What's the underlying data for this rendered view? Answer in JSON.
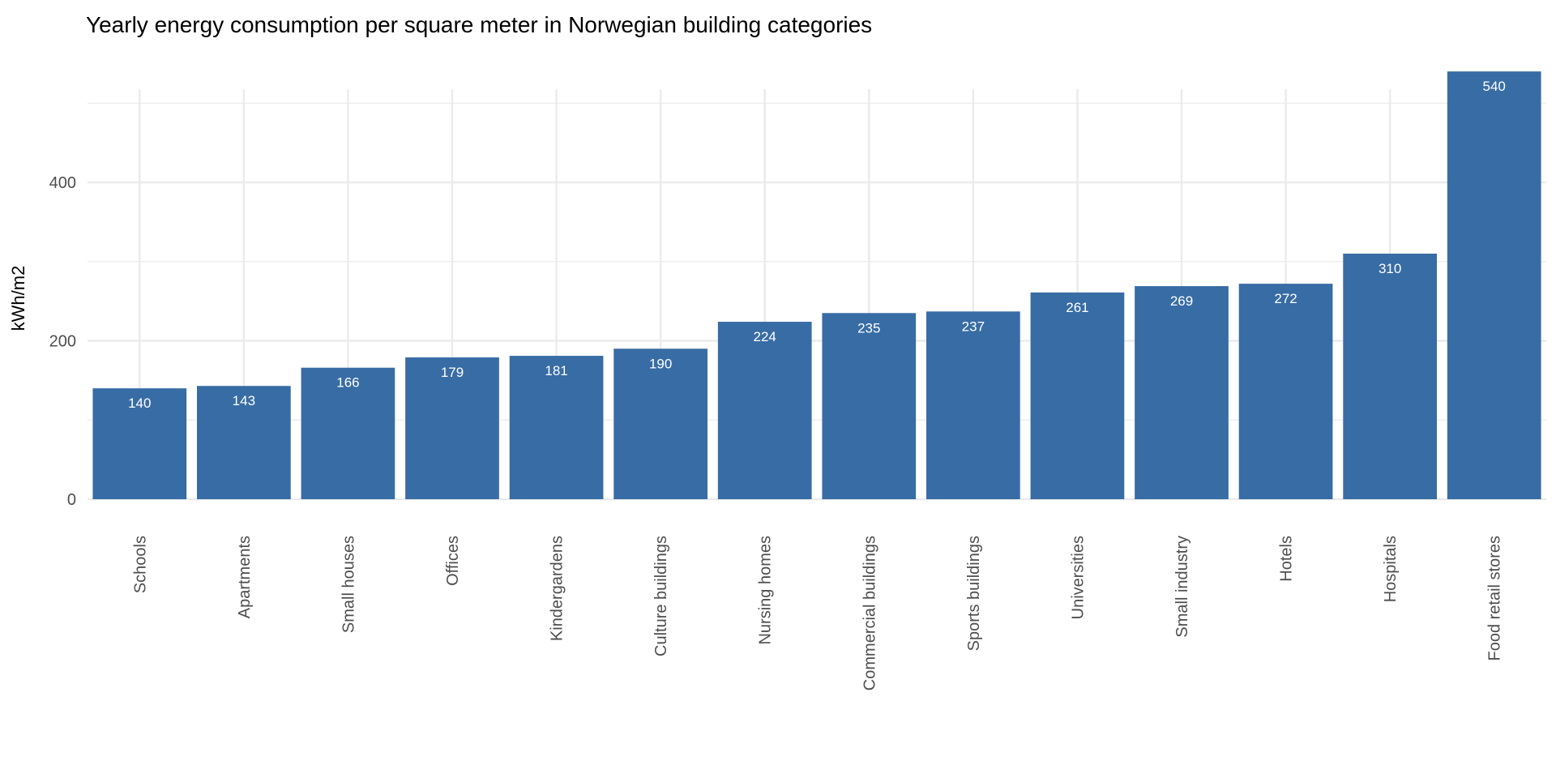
{
  "chart_data": {
    "type": "bar",
    "title": "Yearly energy consumption per square meter in Norwegian building categories",
    "xlabel": "",
    "ylabel": "kWh/m2",
    "ylim": [
      0,
      560
    ],
    "yticks": [
      0,
      200,
      400
    ],
    "ytick_labels": [
      "0",
      "200",
      "400"
    ],
    "minor_gridlines": [
      100,
      300,
      500
    ],
    "grid": true,
    "bar_color": "#386CA5",
    "categories": [
      "Schools",
      "Apartments",
      "Small houses",
      "Offices",
      "Kindergardens",
      "Culture buildings",
      "Nursing homes",
      "Commercial buildings",
      "Sports buildings",
      "Universities",
      "Small industry",
      "Hotels",
      "Hospitals",
      "Food retail stores"
    ],
    "values": [
      140,
      143,
      166,
      179,
      181,
      190,
      224,
      235,
      237,
      261,
      269,
      272,
      310,
      540
    ],
    "data_labels": [
      "140",
      "143",
      "166",
      "179",
      "181",
      "190",
      "224",
      "235",
      "237",
      "261",
      "269",
      "272",
      "310",
      "540"
    ]
  }
}
